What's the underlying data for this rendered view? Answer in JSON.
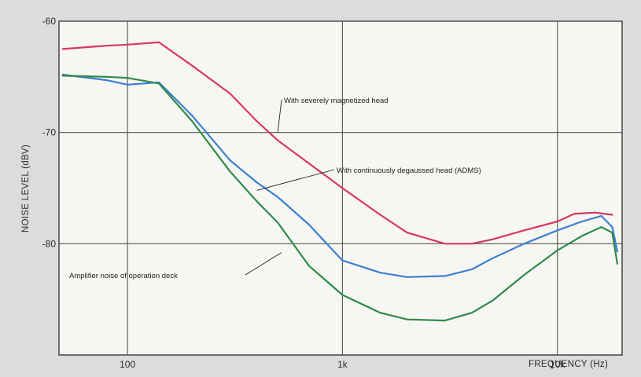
{
  "chart_data": {
    "type": "line",
    "xscale": "log",
    "xlabel": "FREQUENCY (Hz)",
    "ylabel": "NOISE LEVEL (dBV)",
    "xlim": [
      48,
      20000
    ],
    "ylim": [
      -90,
      -60
    ],
    "x_ticks": [
      {
        "value": 100,
        "label": "100"
      },
      {
        "value": 1000,
        "label": "1k"
      },
      {
        "value": 10000,
        "label": "10k"
      }
    ],
    "y_ticks": [
      {
        "value": -60,
        "label": "-60"
      },
      {
        "value": -70,
        "label": "-70"
      },
      {
        "value": -80,
        "label": "-80"
      }
    ],
    "grid": true,
    "series": [
      {
        "color": "#d8356a",
        "points": [
          [
            50,
            -62.5
          ],
          [
            80,
            -62.2
          ],
          [
            100,
            -62.1
          ],
          [
            140,
            -61.9
          ],
          [
            200,
            -64.0
          ],
          [
            300,
            -66.5
          ],
          [
            400,
            -69.0
          ],
          [
            500,
            -70.7
          ],
          [
            700,
            -72.8
          ],
          [
            1000,
            -75.0
          ],
          [
            1500,
            -77.4
          ],
          [
            2000,
            -79.0
          ],
          [
            3000,
            -80.0
          ],
          [
            4000,
            -80.0
          ],
          [
            5000,
            -79.6
          ],
          [
            7000,
            -78.8
          ],
          [
            10000,
            -78.0
          ],
          [
            12000,
            -77.3
          ],
          [
            15000,
            -77.2
          ],
          [
            18000,
            -77.4
          ]
        ]
      },
      {
        "color": "#3e7fd0",
        "points": [
          [
            50,
            -64.8
          ],
          [
            80,
            -65.3
          ],
          [
            100,
            -65.7
          ],
          [
            140,
            -65.5
          ],
          [
            200,
            -68.5
          ],
          [
            300,
            -72.5
          ],
          [
            400,
            -74.5
          ],
          [
            500,
            -75.8
          ],
          [
            700,
            -78.3
          ],
          [
            1000,
            -81.5
          ],
          [
            1500,
            -82.6
          ],
          [
            2000,
            -83.0
          ],
          [
            3000,
            -82.9
          ],
          [
            4000,
            -82.3
          ],
          [
            5000,
            -81.3
          ],
          [
            7000,
            -80.0
          ],
          [
            10000,
            -78.8
          ],
          [
            13000,
            -78.0
          ],
          [
            16000,
            -77.5
          ],
          [
            18000,
            -78.5
          ],
          [
            19000,
            -80.7
          ]
        ]
      },
      {
        "color": "#2f8a4c",
        "points": [
          [
            50,
            -64.9
          ],
          [
            80,
            -65.0
          ],
          [
            100,
            -65.1
          ],
          [
            140,
            -65.6
          ],
          [
            200,
            -69.0
          ],
          [
            300,
            -73.5
          ],
          [
            400,
            -76.2
          ],
          [
            500,
            -78.1
          ],
          [
            700,
            -82.0
          ],
          [
            1000,
            -84.6
          ],
          [
            1500,
            -86.2
          ],
          [
            2000,
            -86.8
          ],
          [
            3000,
            -86.9
          ],
          [
            4000,
            -86.2
          ],
          [
            5000,
            -85.1
          ],
          [
            7000,
            -82.8
          ],
          [
            10000,
            -80.6
          ],
          [
            13000,
            -79.3
          ],
          [
            16000,
            -78.5
          ],
          [
            18000,
            -79.0
          ],
          [
            19000,
            -81.8
          ]
        ]
      }
    ],
    "annotations": [
      {
        "text": "With severely magnetized head",
        "points_to_x": 500,
        "points_to_y": -70.0
      },
      {
        "text": "With continuously degaussed head (ADMS)",
        "points_to_x": 400,
        "points_to_y": -75.2
      },
      {
        "text": "Amplifier noise of operation deck",
        "points_to_x": 520,
        "points_to_y": -80.8
      }
    ]
  }
}
